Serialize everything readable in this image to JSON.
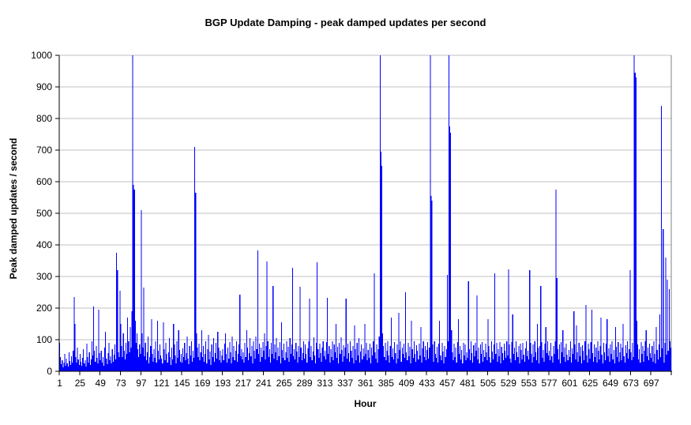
{
  "chart_data": {
    "type": "bar",
    "title": "BGP Update Damping - peak damped updates per second",
    "xlabel": "Hour",
    "ylabel": "Peak damped updates / second",
    "ylim": [
      0,
      1000
    ],
    "y_tick_interval": 100,
    "y_tick_labels": [
      "0",
      "100",
      "200",
      "300",
      "400",
      "500",
      "600",
      "700",
      "800",
      "900",
      "1000"
    ],
    "x_first_hour": 1,
    "x_last_hour": 720,
    "x_tick_interval": 24,
    "x_tick_labels": [
      "1",
      "25",
      "49",
      "73",
      "97",
      "121",
      "145",
      "169",
      "193",
      "217",
      "241",
      "265",
      "289",
      "313",
      "337",
      "361",
      "385",
      "409",
      "433",
      "457",
      "481",
      "505",
      "529",
      "553",
      "577",
      "601",
      "625",
      "649",
      "673",
      "697"
    ],
    "grid": "horizontal",
    "legend": "none",
    "bar_color": "#0000ff",
    "gridline_color": "#c0c0c0",
    "plot_border_color": "#808080",
    "axis_color": "#000000",
    "background_color": "#ffffff",
    "values": [
      90,
      45,
      22,
      35,
      12,
      28,
      55,
      18,
      40,
      25,
      15,
      60,
      32,
      20,
      48,
      28,
      65,
      235,
      150,
      45,
      28,
      75,
      38,
      20,
      55,
      30,
      18,
      42,
      70,
      25,
      35,
      15,
      88,
      45,
      28,
      60,
      20,
      38,
      95,
      50,
      205,
      65,
      30,
      80,
      42,
      25,
      195,
      58,
      35,
      65,
      28,
      45,
      18,
      75,
      125,
      40,
      22,
      58,
      90,
      35,
      48,
      25,
      70,
      30,
      52,
      85,
      38,
      375,
      320,
      60,
      45,
      255,
      150,
      80,
      45,
      120,
      65,
      38,
      90,
      55,
      170,
      95,
      60,
      140,
      75,
      190,
      1000,
      590,
      575,
      160,
      90,
      120,
      70,
      45,
      85,
      55,
      510,
      120,
      75,
      265,
      48,
      90,
      35,
      60,
      110,
      25,
      45,
      80,
      165,
      55,
      30,
      70,
      42,
      95,
      28,
      160,
      65,
      38,
      85,
      50,
      40,
      25,
      155,
      70,
      35,
      90,
      55,
      28,
      60,
      105,
      45,
      20,
      75,
      38,
      150,
      85,
      50,
      25,
      95,
      42,
      130,
      68,
      30,
      55,
      28,
      72,
      45,
      90,
      35,
      58,
      110,
      40,
      22,
      80,
      50,
      95,
      30,
      65,
      42,
      710,
      565,
      120,
      75,
      45,
      88,
      35,
      60,
      130,
      45,
      80,
      30,
      55,
      95,
      25,
      70,
      115,
      38,
      62,
      20,
      85,
      45,
      105,
      30,
      58,
      90,
      40,
      125,
      75,
      35,
      65,
      28,
      50,
      70,
      35,
      88,
      120,
      55,
      28,
      75,
      40,
      92,
      60,
      25,
      110,
      45,
      80,
      35,
      65,
      95,
      30,
      55,
      85,
      242,
      48,
      70,
      38,
      60,
      28,
      90,
      45,
      130,
      75,
      35,
      58,
      105,
      48,
      80,
      25,
      95,
      65,
      40,
      110,
      70,
      383,
      55,
      88,
      30,
      75,
      45,
      92,
      65,
      120,
      38,
      80,
      347,
      95,
      45,
      70,
      28,
      90,
      55,
      270,
      40,
      85,
      60,
      105,
      35,
      75,
      48,
      92,
      25,
      155,
      68,
      42,
      88,
      35,
      60,
      95,
      42,
      78,
      30,
      105,
      55,
      85,
      327,
      48,
      70,
      38,
      90,
      62,
      28,
      80,
      45,
      267,
      75,
      35,
      58,
      95,
      40,
      85,
      55,
      28,
      72,
      95,
      230,
      45,
      80,
      35,
      62,
      108,
      50,
      25,
      90,
      345,
      70,
      42,
      88,
      58,
      30,
      75,
      95,
      48,
      65,
      38,
      92,
      233,
      55,
      80,
      28,
      70,
      45,
      95,
      35,
      85,
      60,
      150,
      42,
      78,
      25,
      90,
      55,
      108,
      68,
      30,
      82,
      48,
      75,
      230,
      40,
      88,
      58,
      30,
      95,
      65,
      42,
      80,
      25,
      145,
      70,
      35,
      90,
      50,
      105,
      28,
      62,
      85,
      38,
      72,
      48,
      150,
      55,
      90,
      35,
      68,
      42,
      88,
      25,
      75,
      50,
      95,
      310,
      60,
      40,
      85,
      28,
      70,
      110,
      1000,
      695,
      650,
      120,
      80,
      45,
      90,
      35,
      65,
      95,
      50,
      28,
      80,
      170,
      45,
      72,
      38,
      92,
      58,
      25,
      85,
      40,
      185,
      68,
      95,
      30,
      75,
      55,
      88,
      42,
      250,
      60,
      35,
      90,
      48,
      78,
      25,
      160,
      70,
      42,
      95,
      55,
      30,
      82,
      65,
      38,
      88,
      50,
      140,
      28,
      72,
      95,
      45,
      80,
      35,
      68,
      92,
      40,
      75,
      1000,
      555,
      540,
      85,
      30,
      95,
      55,
      42,
      78,
      28,
      88,
      160,
      50,
      35,
      90,
      62,
      25,
      80,
      45,
      70,
      305,
      95,
      1000,
      775,
      755,
      130,
      60,
      35,
      88,
      45,
      75,
      28,
      92,
      165,
      55,
      80,
      38,
      68,
      25,
      90,
      50,
      85,
      35,
      60,
      42,
      285,
      70,
      35,
      95,
      58,
      28,
      82,
      48,
      90,
      65,
      240,
      38,
      75,
      25,
      85,
      55,
      92,
      30,
      68,
      45,
      88,
      60,
      35,
      165,
      80,
      45,
      28,
      95,
      62,
      38,
      85,
      310,
      55,
      90,
      30,
      70,
      48,
      92,
      25,
      78,
      58,
      35,
      88,
      65,
      42,
      95,
      50,
      323,
      85,
      40,
      28,
      92,
      180,
      55,
      75,
      35,
      95,
      60,
      45,
      80,
      25,
      88,
      68,
      38,
      90,
      52,
      30,
      72,
      95,
      48,
      65,
      38,
      320,
      90,
      55,
      28,
      85,
      45,
      95,
      60,
      35,
      150,
      75,
      25,
      80,
      270,
      92,
      42,
      68,
      30,
      88,
      140,
      58,
      95,
      50,
      65,
      35,
      90,
      48,
      28,
      80,
      55,
      95,
      575,
      295,
      70,
      38,
      85,
      25,
      92,
      60,
      130,
      45,
      75,
      30,
      88,
      52,
      35,
      68,
      45,
      95,
      28,
      72,
      55,
      190,
      85,
      38,
      145,
      60,
      30,
      90,
      48,
      78,
      25,
      82,
      65,
      35,
      95,
      210,
      50,
      28,
      88,
      70,
      40,
      92,
      195,
      58,
      30,
      85,
      45,
      75,
      28,
      95,
      65,
      38,
      80,
      170,
      52,
      25,
      90,
      60,
      35,
      88,
      165,
      48,
      72,
      30,
      85,
      55,
      95,
      38,
      68,
      25,
      140,
      78,
      45,
      92,
      30,
      60,
      88,
      35,
      75,
      150,
      48,
      28,
      82,
      58,
      95,
      40,
      70,
      320,
      60,
      35,
      90,
      45,
      1000,
      945,
      930,
      160,
      85,
      38,
      70,
      28,
      92,
      55,
      80,
      30,
      65,
      95,
      130,
      48,
      75,
      35,
      88,
      58,
      42,
      80,
      30,
      95,
      55,
      25,
      140,
      68,
      38,
      85,
      180,
      45,
      840,
      72,
      450,
      28,
      90,
      360,
      52,
      290,
      65,
      260,
      95,
      75
    ]
  }
}
